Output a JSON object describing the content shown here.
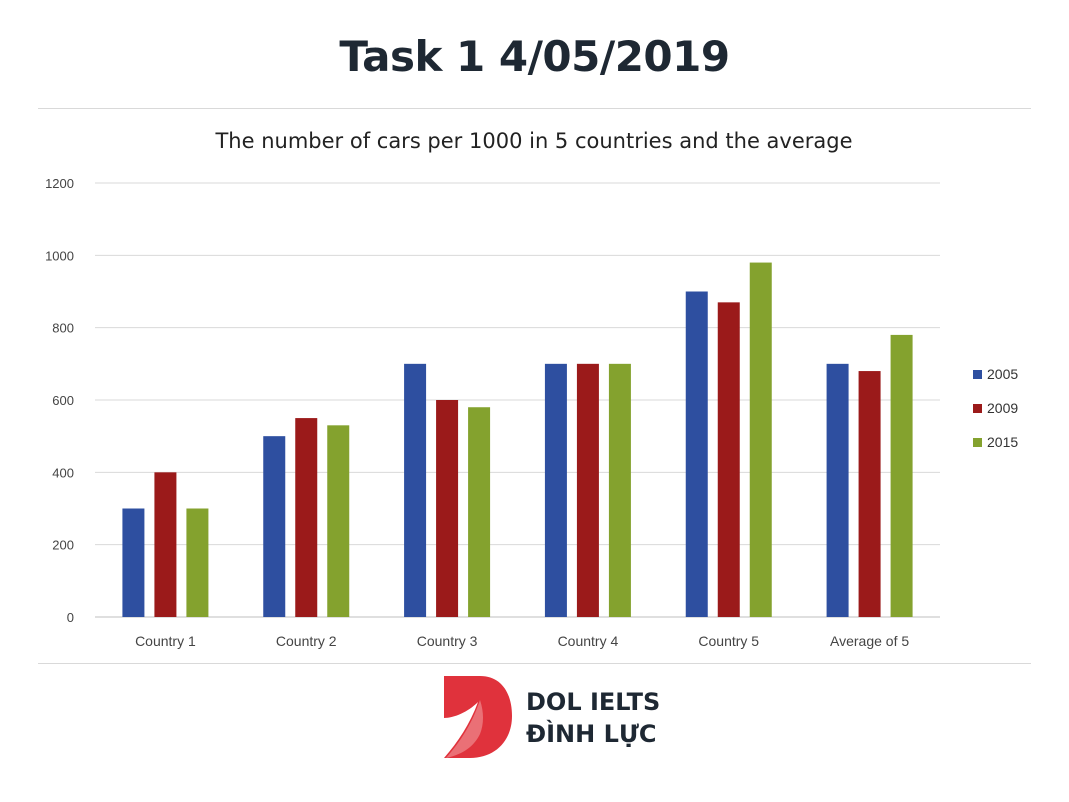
{
  "header": {
    "title": "Task 1 4/05/2019"
  },
  "brand": {
    "line1": "DOL IELTS",
    "line2": "ĐÌNH LỰC",
    "color": "#e0323c"
  },
  "chart_data": {
    "type": "bar",
    "title": "The number of cars per 1000 in 5 countries and the average",
    "xlabel": "",
    "ylabel": "",
    "categories": [
      "Country 1",
      "Country 2",
      "Country 3",
      "Country 4",
      "Country 5",
      "Average of 5"
    ],
    "series": [
      {
        "name": "2005",
        "color": "#2e4fa0",
        "values": [
          300,
          500,
          700,
          700,
          900,
          700
        ]
      },
      {
        "name": "2009",
        "color": "#9b1a1a",
        "values": [
          400,
          550,
          600,
          700,
          870,
          680
        ]
      },
      {
        "name": "2015",
        "color": "#84a22e",
        "values": [
          300,
          530,
          580,
          700,
          980,
          780
        ]
      }
    ],
    "ylim": [
      0,
      1200
    ],
    "yticks": [
      0,
      200,
      400,
      600,
      800,
      1000,
      1200
    ],
    "grid": true,
    "legend": "right"
  }
}
